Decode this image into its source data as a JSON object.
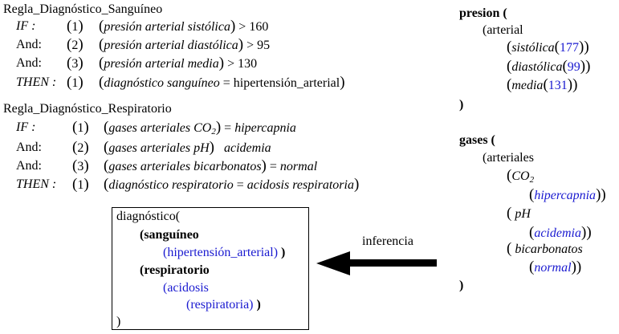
{
  "rule1": {
    "title": "Regla_Diagnóstico_Sanguíneo",
    "rows": [
      {
        "kw": "IF :",
        "num": "1",
        "text": "presión arterial sistólica",
        "op": ">",
        "val": "160"
      },
      {
        "kw": "And:",
        "num": "2",
        "text": "presión arterial diastólica",
        "op": ">",
        "val": "95"
      },
      {
        "kw": "And:",
        "num": "3",
        "text": "presión arterial media",
        "op": ">",
        "val": "130"
      },
      {
        "kw": "THEN :",
        "num": "1",
        "text": "diagnóstico sanguíneo",
        "op": "=",
        "val": "hipertensión_arterial"
      }
    ]
  },
  "rule2": {
    "title": "Regla_Diagnóstico_Respiratorio",
    "rows": [
      {
        "kw": "IF :",
        "num": "1",
        "text": "gases arteriales CO",
        "sub": "2",
        "op": "=",
        "val": "hipercapnia"
      },
      {
        "kw": "And:",
        "num": "2",
        "text": "gases arteriales pH",
        "op": "",
        "val": "acidemia"
      },
      {
        "kw": "And:",
        "num": "3",
        "text": "gases arteriales bicarbonatos",
        "op": "=",
        "val": "normal"
      },
      {
        "kw": "THEN :",
        "num": "1",
        "text": "diagnóstico respiratorio",
        "op": "=",
        "val": "acidosis respiratoria"
      }
    ]
  },
  "presion": {
    "head": "presion (",
    "group": "(arterial",
    "items": [
      {
        "name": "sistólica",
        "value": "177"
      },
      {
        "name": "diastólica",
        "value": "99"
      },
      {
        "name": "media",
        "value": "131"
      }
    ],
    "close": ")"
  },
  "gases": {
    "head": "gases (",
    "group": "(arteriales",
    "items": [
      {
        "name": "CO",
        "sub": "2",
        "value": "hipercapnia"
      },
      {
        "name": "pH",
        "value": "acidemia"
      },
      {
        "name": "bicarbonatos",
        "value": "normal"
      }
    ],
    "close": ")"
  },
  "diagnostico": {
    "head": "diagnóstico(",
    "sang_label": "(sanguíneo",
    "sang_value": "(hipertensión_arterial)",
    "resp_label": "(respiratorio",
    "resp_value_1": "(acidosis",
    "resp_value_2": "(respiratoria)",
    "close_paren": ")",
    "close": ")"
  },
  "arrow_label": "inferencia",
  "colors": {
    "value_blue": "#1a1ad0",
    "text": "#000000"
  }
}
